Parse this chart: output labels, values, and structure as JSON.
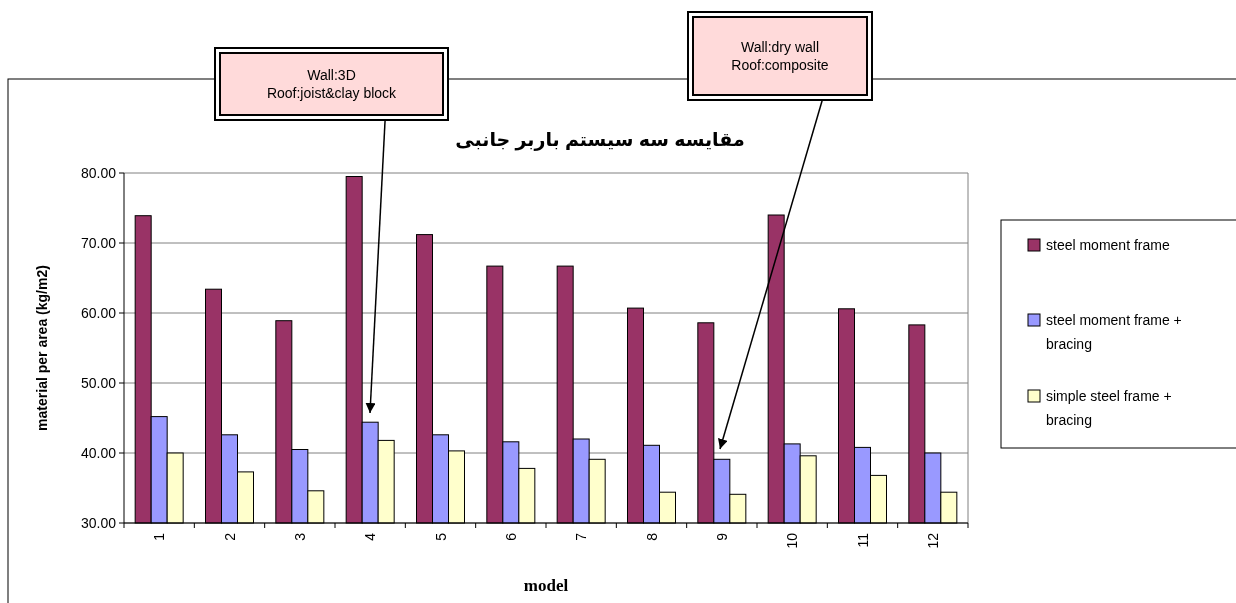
{
  "chart_data": {
    "type": "bar",
    "title": "مقایسه سه سیستم باربر جانبی",
    "xlabel": "model",
    "ylabel": "material per area   (kg/m2)",
    "categories": [
      "1",
      "2",
      "3",
      "4",
      "5",
      "6",
      "7",
      "8",
      "9",
      "10",
      "11",
      "12"
    ],
    "series": [
      {
        "name": "steel moment frame",
        "color": "#993366",
        "values": [
          73.9,
          63.4,
          58.9,
          79.5,
          71.2,
          66.7,
          66.7,
          60.7,
          58.6,
          74.0,
          60.6,
          58.3
        ]
      },
      {
        "name": "steel moment frame + bracing",
        "color": "#9999ff",
        "values": [
          45.2,
          42.6,
          40.5,
          44.4,
          42.6,
          41.6,
          42.0,
          41.1,
          39.1,
          41.3,
          40.8,
          40.0
        ]
      },
      {
        "name": "simple steel frame + bracing",
        "color": "#ffffcc",
        "values": [
          40.0,
          37.3,
          34.6,
          41.8,
          40.3,
          37.8,
          39.1,
          34.4,
          34.1,
          39.6,
          36.8,
          34.4
        ]
      }
    ],
    "ylim": [
      30,
      80
    ],
    "yticks": [
      {
        "value": 30,
        "label": "30.00"
      },
      {
        "value": 40,
        "label": "40.00"
      },
      {
        "value": 50,
        "label": "50.00"
      },
      {
        "value": 60,
        "label": "60.00"
      },
      {
        "value": 70,
        "label": "70.00"
      },
      {
        "value": 80,
        "label": "80.00"
      }
    ],
    "grid": "y",
    "legend": "right",
    "annotations": [
      "Wall:3D\nRoof:joist&clay block",
      "Wall:dry wall\nRoof:composite"
    ]
  }
}
